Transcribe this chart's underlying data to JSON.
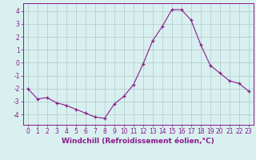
{
  "x": [
    0,
    1,
    2,
    3,
    4,
    5,
    6,
    7,
    8,
    9,
    10,
    11,
    12,
    13,
    14,
    15,
    16,
    17,
    18,
    19,
    20,
    21,
    22,
    23
  ],
  "y": [
    -2.0,
    -2.8,
    -2.7,
    -3.1,
    -3.3,
    -3.6,
    -3.9,
    -4.2,
    -4.3,
    -3.2,
    -2.6,
    -1.7,
    -0.1,
    1.7,
    2.8,
    4.1,
    4.1,
    3.3,
    1.4,
    -0.2,
    -0.8,
    -1.4,
    -1.6,
    -2.2
  ],
  "line_color": "#8B1A8B",
  "marker": "+",
  "marker_color": "#8B1A8B",
  "bg_color": "#d8f0f0",
  "grid_color": "#b0c8c8",
  "axis_color": "#8B1A8B",
  "tick_color": "#8B1A8B",
  "xlabel": "Windchill (Refroidissement éolien,°C)",
  "ylim": [
    -4.8,
    4.6
  ],
  "xlim_left": -0.5,
  "xlim_right": 23.5,
  "yticks": [
    -4,
    -3,
    -2,
    -1,
    0,
    1,
    2,
    3,
    4
  ],
  "xticks": [
    0,
    1,
    2,
    3,
    4,
    5,
    6,
    7,
    8,
    9,
    10,
    11,
    12,
    13,
    14,
    15,
    16,
    17,
    18,
    19,
    20,
    21,
    22,
    23
  ],
  "tick_fontsize": 5.5,
  "label_fontsize": 6.5
}
